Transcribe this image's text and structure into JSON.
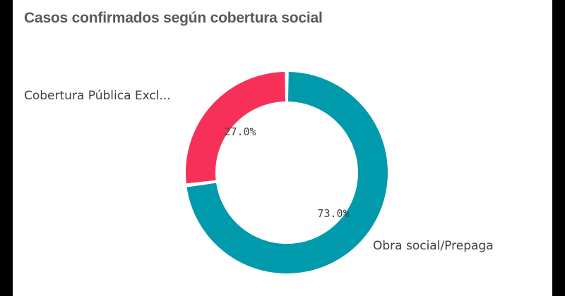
{
  "chart_data": {
    "type": "pie",
    "title": "Casos confirmados según cobertura social",
    "donut": true,
    "slices": [
      {
        "label": "Cobertura Pública Excl...",
        "value": 27.0,
        "display": "27.0%",
        "color": "#f7305a"
      },
      {
        "label": "Obra social/Prepaga",
        "value": 73.0,
        "display": "73.0%",
        "color": "#019aac"
      }
    ]
  }
}
